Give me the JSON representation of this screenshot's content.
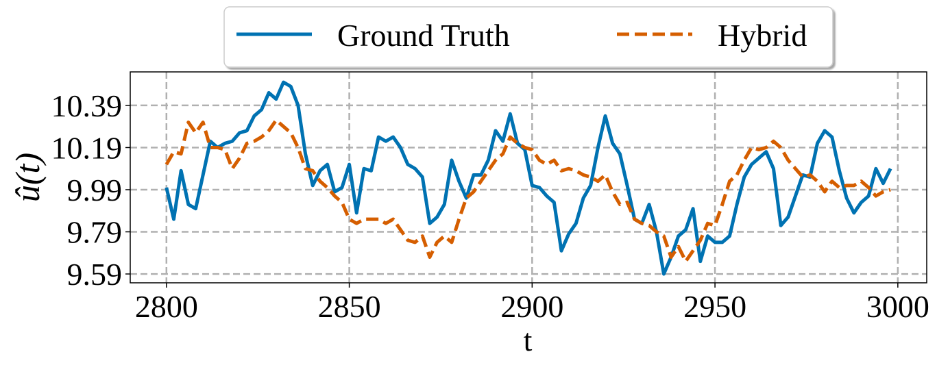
{
  "chart_data": {
    "type": "line",
    "x_label": "t",
    "y_label": "û(t)",
    "x": [
      2800,
      2802,
      2804,
      2806,
      2808,
      2810,
      2812,
      2814,
      2816,
      2818,
      2820,
      2822,
      2824,
      2826,
      2828,
      2830,
      2832,
      2834,
      2836,
      2838,
      2840,
      2842,
      2844,
      2846,
      2848,
      2850,
      2852,
      2854,
      2856,
      2858,
      2860,
      2862,
      2864,
      2866,
      2868,
      2870,
      2872,
      2874,
      2876,
      2878,
      2880,
      2882,
      2884,
      2886,
      2888,
      2890,
      2892,
      2894,
      2896,
      2898,
      2900,
      2902,
      2904,
      2906,
      2908,
      2910,
      2912,
      2914,
      2916,
      2918,
      2920,
      2922,
      2924,
      2926,
      2928,
      2930,
      2932,
      2934,
      2936,
      2938,
      2940,
      2942,
      2944,
      2946,
      2948,
      2950,
      2952,
      2954,
      2956,
      2958,
      2960,
      2962,
      2964,
      2966,
      2968,
      2970,
      2972,
      2974,
      2976,
      2978,
      2980,
      2982,
      2984,
      2986,
      2988,
      2990,
      2992,
      2994,
      2996,
      2998
    ],
    "series": [
      {
        "name": "Ground Truth",
        "color": "#0072b2",
        "dash": false,
        "values": [
          10.0,
          9.85,
          10.08,
          9.92,
          9.9,
          10.06,
          10.22,
          10.19,
          10.21,
          10.22,
          10.26,
          10.27,
          10.34,
          10.37,
          10.45,
          10.42,
          10.5,
          10.48,
          10.39,
          10.16,
          10.01,
          10.08,
          10.11,
          9.98,
          10.0,
          10.11,
          9.88,
          10.09,
          10.08,
          10.24,
          10.22,
          10.24,
          10.19,
          10.11,
          10.09,
          10.05,
          9.83,
          9.86,
          9.92,
          10.13,
          10.03,
          9.95,
          10.06,
          10.06,
          10.13,
          10.27,
          10.22,
          10.35,
          10.21,
          10.18,
          10.01,
          10.0,
          9.96,
          9.93,
          9.7,
          9.78,
          9.83,
          9.95,
          10.01,
          10.19,
          10.34,
          10.21,
          10.16,
          10.01,
          9.85,
          9.83,
          9.92,
          9.79,
          9.59,
          9.67,
          9.77,
          9.8,
          9.9,
          9.65,
          9.77,
          9.74,
          9.74,
          9.77,
          9.92,
          10.05,
          10.11,
          10.14,
          10.17,
          10.09,
          9.82,
          9.86,
          9.96,
          10.06,
          10.05,
          10.21,
          10.27,
          10.24,
          10.08,
          9.95,
          9.88,
          9.93,
          9.96,
          10.09,
          10.02,
          10.09
        ]
      },
      {
        "name": "Hybrid",
        "color": "#d55e00",
        "dash": true,
        "values": [
          10.11,
          10.17,
          10.16,
          10.31,
          10.26,
          10.31,
          10.19,
          10.19,
          10.18,
          10.09,
          10.14,
          10.21,
          10.22,
          10.24,
          10.27,
          10.32,
          10.29,
          10.26,
          10.19,
          10.09,
          10.08,
          10.03,
          10.0,
          9.96,
          9.93,
          9.85,
          9.83,
          9.85,
          9.85,
          9.85,
          9.83,
          9.85,
          9.8,
          9.75,
          9.74,
          9.77,
          9.67,
          9.74,
          9.77,
          9.74,
          9.85,
          9.95,
          9.98,
          10.03,
          10.08,
          10.13,
          10.16,
          10.24,
          10.21,
          10.19,
          10.18,
          10.13,
          10.11,
          10.13,
          10.08,
          10.09,
          10.08,
          10.06,
          10.05,
          10.03,
          10.06,
          9.98,
          9.92,
          9.93,
          9.85,
          9.83,
          9.82,
          9.79,
          9.77,
          9.67,
          9.72,
          9.65,
          9.7,
          9.75,
          9.83,
          9.82,
          9.92,
          10.03,
          10.06,
          10.13,
          10.19,
          10.18,
          10.19,
          10.22,
          10.19,
          10.13,
          10.09,
          10.05,
          10.06,
          10.03,
          9.98,
          10.03,
          10.0,
          10.01,
          10.01,
          10.03,
          10.0,
          9.96,
          9.98,
          9.99
        ]
      }
    ],
    "xlim": [
      2790.1,
      3007.9
    ],
    "xticks": [
      2800,
      2850,
      2900,
      2950,
      3000
    ],
    "ylim": [
      9.548,
      10.549
    ],
    "yticks": [
      9.59,
      9.79,
      9.99,
      10.19,
      10.39
    ],
    "grid": true,
    "legend": "top"
  }
}
